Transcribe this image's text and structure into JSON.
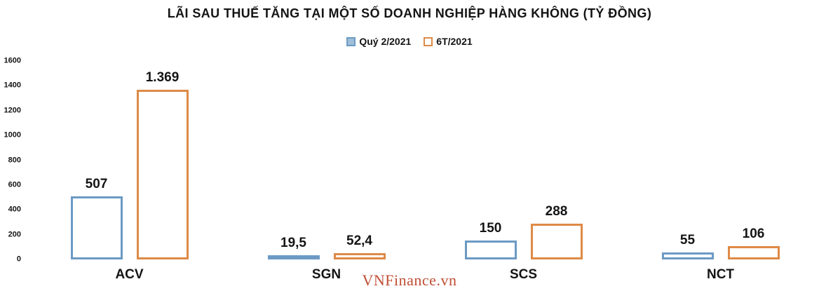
{
  "watermark": "VNFinance.vn",
  "colors": {
    "series1_border": "#6C9AC4",
    "series2_border": "#DE8A47",
    "series1_legend_fill": "#9FBED9",
    "series2_legend_fill": "#FFFFFF",
    "text": "#141414",
    "watermark": "#C14E36",
    "background": "#FFFFFF"
  },
  "chart_data": {
    "type": "bar",
    "title": "LÃI SAU THUẾ TĂNG TẠI MỘT SỐ DOANH NGHIỆP HÀNG KHÔNG (TỶ ĐỒNG)",
    "categories": [
      "ACV",
      "SGN",
      "SCS",
      "NCT"
    ],
    "series": [
      {
        "name": "Quý 2/2021",
        "color": "#6C9AC4",
        "marker_fill": "#9FBED9",
        "values": [
          507,
          19.5,
          150,
          55
        ],
        "labels": [
          "507",
          "19,5",
          "150",
          "55"
        ]
      },
      {
        "name": "6T/2021",
        "color": "#DE8A47",
        "marker_fill": "#FFFFFF",
        "values": [
          1369,
          52.4,
          288,
          106
        ],
        "labels": [
          "1.369",
          "52,4",
          "288",
          "106"
        ]
      }
    ],
    "xlabel": "",
    "ylabel": "",
    "ylim": [
      0,
      1600
    ],
    "yticks": [
      0,
      200,
      400,
      600,
      800,
      1000,
      1200,
      1400,
      1600
    ],
    "grid": false,
    "axis_lines": false,
    "bar_style": "outlined",
    "legend_position": "top"
  }
}
